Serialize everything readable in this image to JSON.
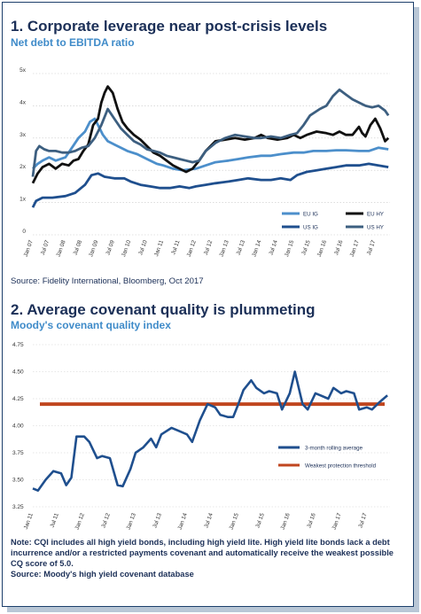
{
  "chart_data": [
    {
      "type": "line",
      "title": "1. Corporate leverage near post-crisis levels",
      "subtitle": "Net debt to EBITDA ratio",
      "source": "Source: Fidelity International, Bloomberg, Oct 2017",
      "ylim": [
        0,
        5
      ],
      "yticks": [
        "0",
        "1x",
        "2x",
        "3x",
        "4x",
        "5x"
      ],
      "xlim": [
        2007.0,
        2017.95
      ],
      "xticks": [
        "Jan 07",
        "Jul 07",
        "Jan 08",
        "Jul 08",
        "Jan 09",
        "Jul 09",
        "Jan 10",
        "Jul 10",
        "Jan 11",
        "Jul 11",
        "Jan 12",
        "Jul 12",
        "Jan 13",
        "Jul 13",
        "Jan 14",
        "Jul 14",
        "Jan 15",
        "Jul 15",
        "Jan 16",
        "Jul 16",
        "Jan 17",
        "Jul 17"
      ],
      "grid": true,
      "legend_position": "bottom-right",
      "series": [
        {
          "name": "EU IG",
          "color": "#4c8fcb",
          "x": [
            2007.0,
            2007.15,
            2007.3,
            2007.5,
            2007.7,
            2008.0,
            2008.2,
            2008.4,
            2008.6,
            2008.75,
            2008.9,
            2009.0,
            2009.15,
            2009.3,
            2009.5,
            2009.7,
            2009.9,
            2010.2,
            2010.5,
            2010.8,
            2011.0,
            2011.3,
            2011.6,
            2012.0,
            2012.3,
            2012.6,
            2013.0,
            2013.3,
            2013.6,
            2014.0,
            2014.3,
            2014.6,
            2015.0,
            2015.3,
            2015.6,
            2016.0,
            2016.3,
            2016.6,
            2017.0,
            2017.3,
            2017.6,
            2017.9
          ],
          "y": [
            2.05,
            2.2,
            2.3,
            2.4,
            2.3,
            2.4,
            2.7,
            3.0,
            3.2,
            3.5,
            3.6,
            3.4,
            3.1,
            2.9,
            2.8,
            2.7,
            2.6,
            2.5,
            2.35,
            2.2,
            2.15,
            2.05,
            2.0,
            2.05,
            2.15,
            2.25,
            2.3,
            2.35,
            2.4,
            2.45,
            2.45,
            2.5,
            2.55,
            2.55,
            2.6,
            2.6,
            2.62,
            2.62,
            2.6,
            2.6,
            2.7,
            2.65
          ]
        },
        {
          "name": "US IG",
          "color": "#1f4f8e",
          "x": [
            2007.0,
            2007.1,
            2007.3,
            2007.6,
            2008.0,
            2008.3,
            2008.6,
            2008.8,
            2009.0,
            2009.2,
            2009.5,
            2009.8,
            2010.0,
            2010.3,
            2010.6,
            2010.9,
            2011.2,
            2011.5,
            2011.8,
            2012.0,
            2012.3,
            2012.6,
            2013.0,
            2013.3,
            2013.6,
            2014.0,
            2014.3,
            2014.6,
            2014.9,
            2015.1,
            2015.4,
            2015.7,
            2016.0,
            2016.3,
            2016.6,
            2017.0,
            2017.3,
            2017.6,
            2017.9
          ],
          "y": [
            0.85,
            1.05,
            1.15,
            1.15,
            1.2,
            1.3,
            1.55,
            1.85,
            1.9,
            1.8,
            1.75,
            1.75,
            1.65,
            1.55,
            1.5,
            1.45,
            1.45,
            1.5,
            1.45,
            1.5,
            1.55,
            1.6,
            1.65,
            1.7,
            1.75,
            1.7,
            1.7,
            1.75,
            1.7,
            1.85,
            1.95,
            2.0,
            2.05,
            2.1,
            2.15,
            2.15,
            2.2,
            2.15,
            2.1
          ]
        },
        {
          "name": "EU HY",
          "color": "#111111",
          "x": [
            2007.0,
            2007.15,
            2007.3,
            2007.5,
            2007.7,
            2007.9,
            2008.1,
            2008.25,
            2008.4,
            2008.55,
            2008.7,
            2008.85,
            2009.0,
            2009.1,
            2009.2,
            2009.3,
            2009.45,
            2009.6,
            2009.75,
            2009.9,
            2010.1,
            2010.3,
            2010.5,
            2010.7,
            2010.9,
            2011.1,
            2011.3,
            2011.5,
            2011.7,
            2011.9,
            2012.1,
            2012.3,
            2012.6,
            2012.9,
            2013.2,
            2013.5,
            2013.8,
            2014.0,
            2014.2,
            2014.5,
            2014.8,
            2015.0,
            2015.2,
            2015.4,
            2015.7,
            2016.0,
            2016.2,
            2016.4,
            2016.6,
            2016.8,
            2017.0,
            2017.1,
            2017.2,
            2017.35,
            2017.5,
            2017.65,
            2017.8,
            2017.9
          ],
          "y": [
            1.6,
            1.9,
            2.1,
            2.2,
            2.05,
            2.2,
            2.15,
            2.3,
            2.35,
            2.6,
            2.8,
            3.4,
            3.6,
            4.1,
            4.4,
            4.6,
            4.4,
            3.9,
            3.5,
            3.3,
            3.1,
            2.95,
            2.75,
            2.55,
            2.45,
            2.3,
            2.15,
            2.05,
            1.95,
            2.05,
            2.3,
            2.6,
            2.9,
            2.95,
            3.0,
            2.95,
            3.0,
            3.1,
            3.0,
            2.95,
            3.0,
            3.1,
            3.0,
            3.1,
            3.2,
            3.15,
            3.1,
            3.2,
            3.1,
            3.1,
            3.35,
            3.15,
            3.05,
            3.4,
            3.6,
            3.3,
            2.9,
            3.0
          ]
        },
        {
          "name": "US HY",
          "color": "#3d5f80",
          "x": [
            2007.0,
            2007.1,
            2007.2,
            2007.35,
            2007.5,
            2007.7,
            2007.9,
            2008.1,
            2008.3,
            2008.5,
            2008.7,
            2008.9,
            2009.1,
            2009.3,
            2009.5,
            2009.7,
            2009.9,
            2010.1,
            2010.3,
            2010.5,
            2010.7,
            2010.9,
            2011.1,
            2011.3,
            2011.5,
            2011.7,
            2011.9,
            2012.1,
            2012.3,
            2012.6,
            2012.9,
            2013.2,
            2013.5,
            2013.8,
            2014.0,
            2014.3,
            2014.6,
            2014.9,
            2015.1,
            2015.3,
            2015.5,
            2015.8,
            2016.0,
            2016.2,
            2016.4,
            2016.6,
            2016.8,
            2017.0,
            2017.2,
            2017.4,
            2017.6,
            2017.8,
            2017.9
          ],
          "y": [
            1.8,
            2.6,
            2.75,
            2.65,
            2.6,
            2.6,
            2.55,
            2.55,
            2.6,
            2.7,
            2.75,
            3.0,
            3.4,
            3.9,
            3.6,
            3.3,
            3.1,
            2.9,
            2.8,
            2.65,
            2.6,
            2.55,
            2.45,
            2.4,
            2.35,
            2.3,
            2.25,
            2.3,
            2.6,
            2.85,
            3.0,
            3.1,
            3.05,
            3.0,
            3.0,
            3.05,
            3.0,
            3.1,
            3.15,
            3.4,
            3.7,
            3.9,
            4.0,
            4.3,
            4.5,
            4.35,
            4.2,
            4.1,
            4.0,
            3.95,
            4.0,
            3.85,
            3.7
          ]
        }
      ]
    },
    {
      "type": "line",
      "title": "2. Average covenant quality is plummeting",
      "subtitle": "Moody's covenant quality index",
      "ylim": [
        3.25,
        4.75
      ],
      "yticks": [
        "3.25",
        "3.50",
        "3.75",
        "4.00",
        "4.25",
        "4.50",
        "4.75"
      ],
      "xlim": [
        2011.0,
        2017.95
      ],
      "xticks": [
        "Jan 11",
        "Jul 11",
        "Jan 12",
        "Jul 12",
        "Jan 13",
        "Jul 13",
        "Jan 14",
        "Jul 14",
        "Jan 15",
        "Jul 15",
        "Jan 16",
        "Jul 16",
        "Jan 17",
        "Jul 17"
      ],
      "legend_position": "right",
      "series": [
        {
          "name": "3-month rolling average",
          "color": "#1f4f8e",
          "x": [
            2011.0,
            2011.1,
            2011.25,
            2011.4,
            2011.55,
            2011.65,
            2011.75,
            2011.85,
            2012.0,
            2012.1,
            2012.25,
            2012.35,
            2012.5,
            2012.65,
            2012.75,
            2012.9,
            2013.0,
            2013.15,
            2013.3,
            2013.4,
            2013.5,
            2013.7,
            2013.85,
            2014.0,
            2014.1,
            2014.25,
            2014.4,
            2014.55,
            2014.65,
            2014.8,
            2014.9,
            2015.0,
            2015.1,
            2015.25,
            2015.35,
            2015.5,
            2015.6,
            2015.75,
            2015.85,
            2016.0,
            2016.1,
            2016.25,
            2016.35,
            2016.5,
            2016.6,
            2016.75,
            2016.85,
            2017.0,
            2017.1,
            2017.25,
            2017.35,
            2017.5,
            2017.6,
            2017.75,
            2017.9
          ],
          "y": [
            3.42,
            3.4,
            3.5,
            3.58,
            3.56,
            3.45,
            3.52,
            3.9,
            3.9,
            3.85,
            3.7,
            3.72,
            3.7,
            3.45,
            3.44,
            3.6,
            3.75,
            3.8,
            3.88,
            3.8,
            3.92,
            3.98,
            3.95,
            3.92,
            3.85,
            4.05,
            4.2,
            4.17,
            4.1,
            4.08,
            4.08,
            4.2,
            4.33,
            4.42,
            4.35,
            4.3,
            4.32,
            4.3,
            4.15,
            4.3,
            4.5,
            4.2,
            4.15,
            4.3,
            4.28,
            4.25,
            4.35,
            4.3,
            4.32,
            4.3,
            4.15,
            4.17,
            4.15,
            4.22,
            4.28
          ]
        },
        {
          "name": "Weakest protection threshold",
          "color": "#c0461f",
          "x": [
            2011.0,
            2017.95
          ],
          "y": [
            4.2,
            4.2
          ]
        }
      ],
      "source": "Source: Moody's high yield covenant database"
    }
  ],
  "note": "Note: CQI includes all high yield bonds, including high yield lite. High yield lite bonds lack a debt incurrence and/or a restricted payments covenant and automatically receive the weakest possible CQ score of 5.0."
}
